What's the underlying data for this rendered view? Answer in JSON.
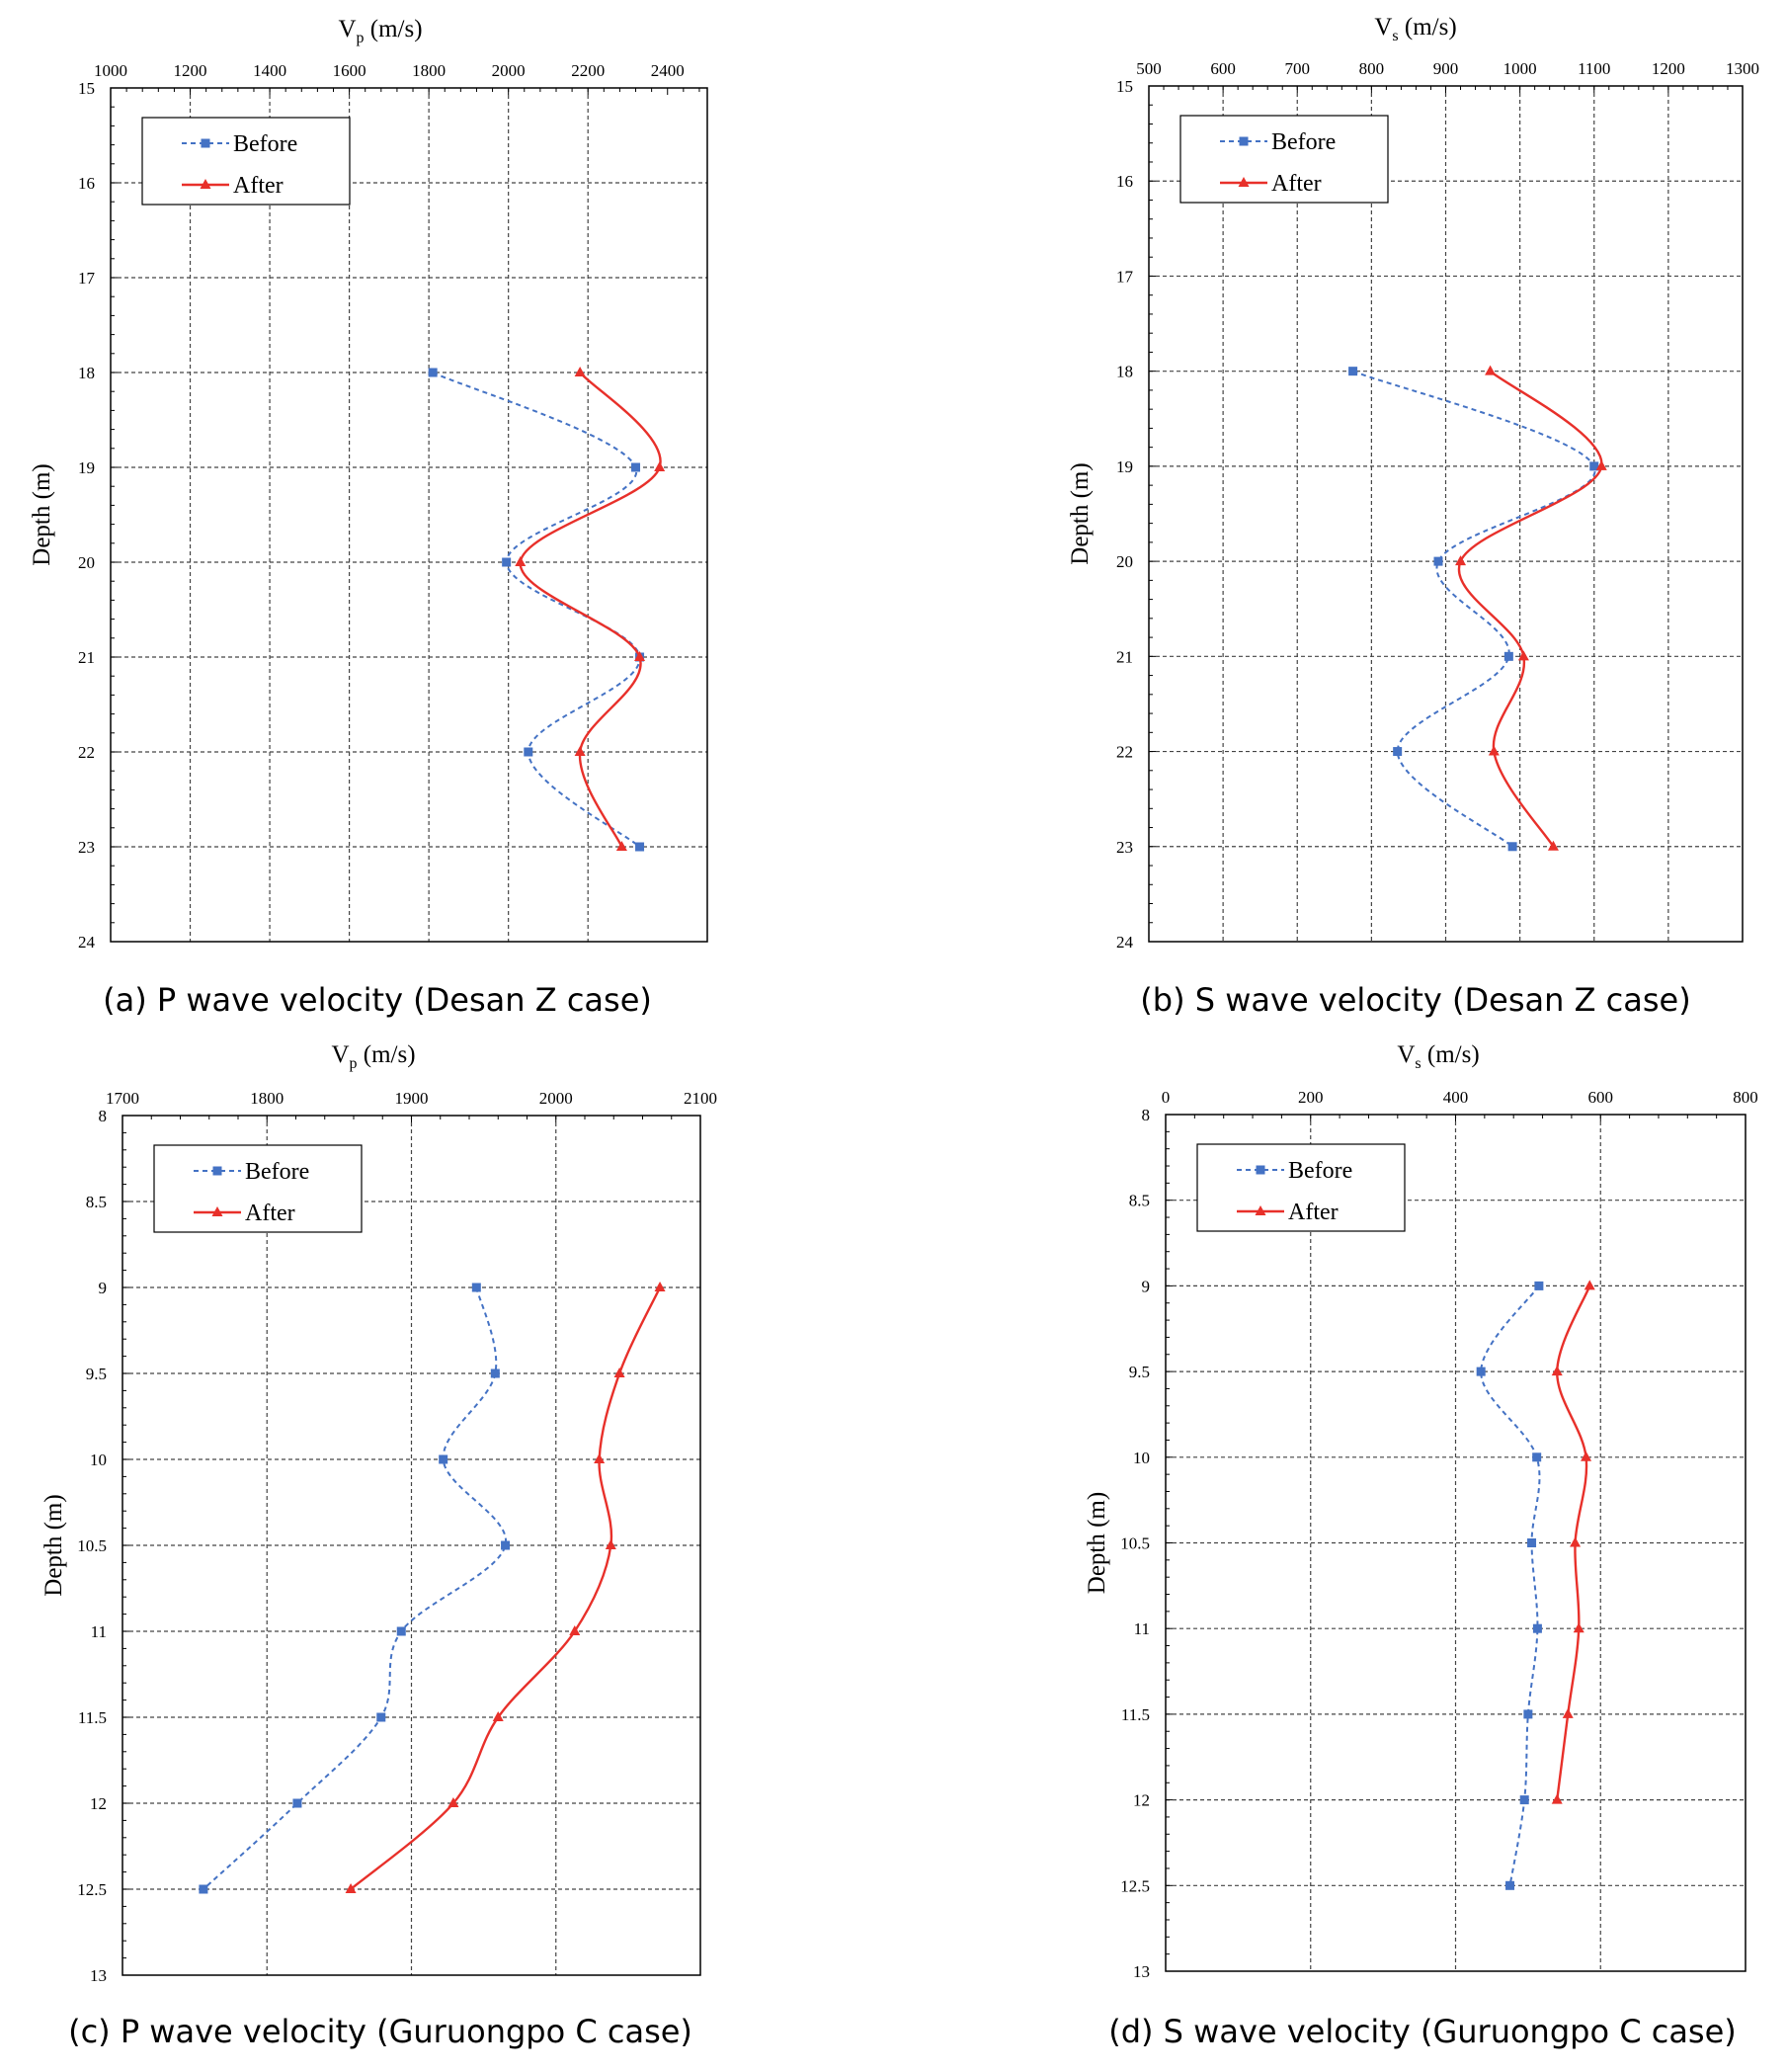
{
  "chart_data": [
    {
      "id": "a",
      "type": "line",
      "xlabel_main": "V",
      "xlabel_sub": "p",
      "xlabel_unit": " (m/s)",
      "ylabel": "Depth (m)",
      "xlim": [
        1000,
        2500
      ],
      "xticks": [
        1000,
        1200,
        1400,
        1600,
        1800,
        2000,
        2200,
        2400
      ],
      "ylim": [
        15,
        24
      ],
      "yticks": [
        15,
        16,
        17,
        18,
        19,
        20,
        21,
        22,
        23,
        24
      ],
      "y_inverted": true,
      "grid": true,
      "legend_position": "top-left",
      "series": [
        {
          "name": "Before",
          "style": "dashed",
          "marker": "square",
          "color": "#4472C4",
          "points": [
            [
              1810,
              18
            ],
            [
              2320,
              19
            ],
            [
              1995,
              20
            ],
            [
              2330,
              21
            ],
            [
              2050,
              22
            ],
            [
              2330,
              23
            ]
          ]
        },
        {
          "name": "After",
          "style": "solid",
          "marker": "triangle",
          "color": "#E8302A",
          "points": [
            [
              2180,
              18
            ],
            [
              2380,
              19
            ],
            [
              2030,
              20
            ],
            [
              2330,
              21
            ],
            [
              2180,
              22
            ],
            [
              2285,
              23
            ]
          ]
        }
      ],
      "caption": "(a) P wave velocity (Desan Z case)"
    },
    {
      "id": "b",
      "type": "line",
      "xlabel_main": "V",
      "xlabel_sub": "s",
      "xlabel_unit": " (m/s)",
      "ylabel": "Depth (m)",
      "xlim": [
        500,
        1300
      ],
      "xticks": [
        500,
        600,
        700,
        800,
        900,
        1000,
        1100,
        1200,
        1300
      ],
      "ylim": [
        15,
        24
      ],
      "yticks": [
        15,
        16,
        17,
        18,
        19,
        20,
        21,
        22,
        23,
        24
      ],
      "y_inverted": true,
      "grid": true,
      "legend_position": "top-left",
      "series": [
        {
          "name": "Before",
          "style": "dashed",
          "marker": "square",
          "color": "#4472C4",
          "points": [
            [
              775,
              18
            ],
            [
              1100,
              19
            ],
            [
              890,
              20
            ],
            [
              985,
              21
            ],
            [
              835,
              22
            ],
            [
              990,
              23
            ]
          ]
        },
        {
          "name": "After",
          "style": "solid",
          "marker": "triangle",
          "color": "#E8302A",
          "points": [
            [
              960,
              18
            ],
            [
              1110,
              19
            ],
            [
              920,
              20
            ],
            [
              1005,
              21
            ],
            [
              965,
              22
            ],
            [
              1045,
              23
            ]
          ]
        }
      ],
      "caption": "(b) S wave velocity (Desan Z case)"
    },
    {
      "id": "c",
      "type": "line",
      "xlabel_main": "V",
      "xlabel_sub": "p",
      "xlabel_unit": " (m/s)",
      "ylabel": "Depth (m)",
      "xlim": [
        1700,
        2100
      ],
      "xticks": [
        1700,
        1800,
        1900,
        2000,
        2100
      ],
      "ylim": [
        8,
        13
      ],
      "yticks": [
        8,
        8.5,
        9,
        9.5,
        10,
        10.5,
        11,
        11.5,
        12,
        12.5,
        13
      ],
      "y_inverted": true,
      "grid": true,
      "legend_position": "top-left",
      "series": [
        {
          "name": "Before",
          "style": "dashed",
          "marker": "square",
          "color": "#4472C4",
          "points": [
            [
              1945,
              9
            ],
            [
              1958,
              9.5
            ],
            [
              1922,
              10
            ],
            [
              1965,
              10.5
            ],
            [
              1893,
              11
            ],
            [
              1879,
              11.5
            ],
            [
              1821,
              12
            ],
            [
              1756,
              12.5
            ]
          ]
        },
        {
          "name": "After",
          "style": "solid",
          "marker": "triangle",
          "color": "#E8302A",
          "points": [
            [
              2072,
              9
            ],
            [
              2044,
              9.5
            ],
            [
              2030,
              10
            ],
            [
              2038,
              10.5
            ],
            [
              2013,
              11
            ],
            [
              1960,
              11.5
            ],
            [
              1929,
              12
            ],
            [
              1858,
              12.5
            ]
          ]
        }
      ],
      "caption": "(c) P wave velocity (Guruongpo C case)"
    },
    {
      "id": "d",
      "type": "line",
      "xlabel_main": "V",
      "xlabel_sub": "s",
      "xlabel_unit": " (m/s)",
      "ylabel": "Depth (m)",
      "xlim": [
        0,
        800
      ],
      "xticks": [
        0,
        200,
        400,
        600,
        800
      ],
      "ylim": [
        8,
        13
      ],
      "yticks": [
        8,
        8.5,
        9,
        9.5,
        10,
        10.5,
        11,
        11.5,
        12,
        12.5,
        13
      ],
      "y_inverted": true,
      "grid": true,
      "legend_position": "top-left",
      "series": [
        {
          "name": "Before",
          "style": "dashed",
          "marker": "square",
          "color": "#4472C4",
          "points": [
            [
              515,
              9
            ],
            [
              435,
              9.5
            ],
            [
              512,
              10
            ],
            [
              505,
              10.5
            ],
            [
              513,
              11
            ],
            [
              500,
              11.5
            ],
            [
              495,
              12
            ],
            [
              475,
              12.5
            ]
          ]
        },
        {
          "name": "After",
          "style": "solid",
          "marker": "triangle",
          "color": "#E8302A",
          "points": [
            [
              585,
              9
            ],
            [
              540,
              9.5
            ],
            [
              580,
              10
            ],
            [
              565,
              10.5
            ],
            [
              570,
              11
            ],
            [
              555,
              11.5
            ],
            [
              540,
              12
            ]
          ]
        }
      ],
      "caption": "(d) S wave velocity (Guruongpo C case)"
    }
  ]
}
